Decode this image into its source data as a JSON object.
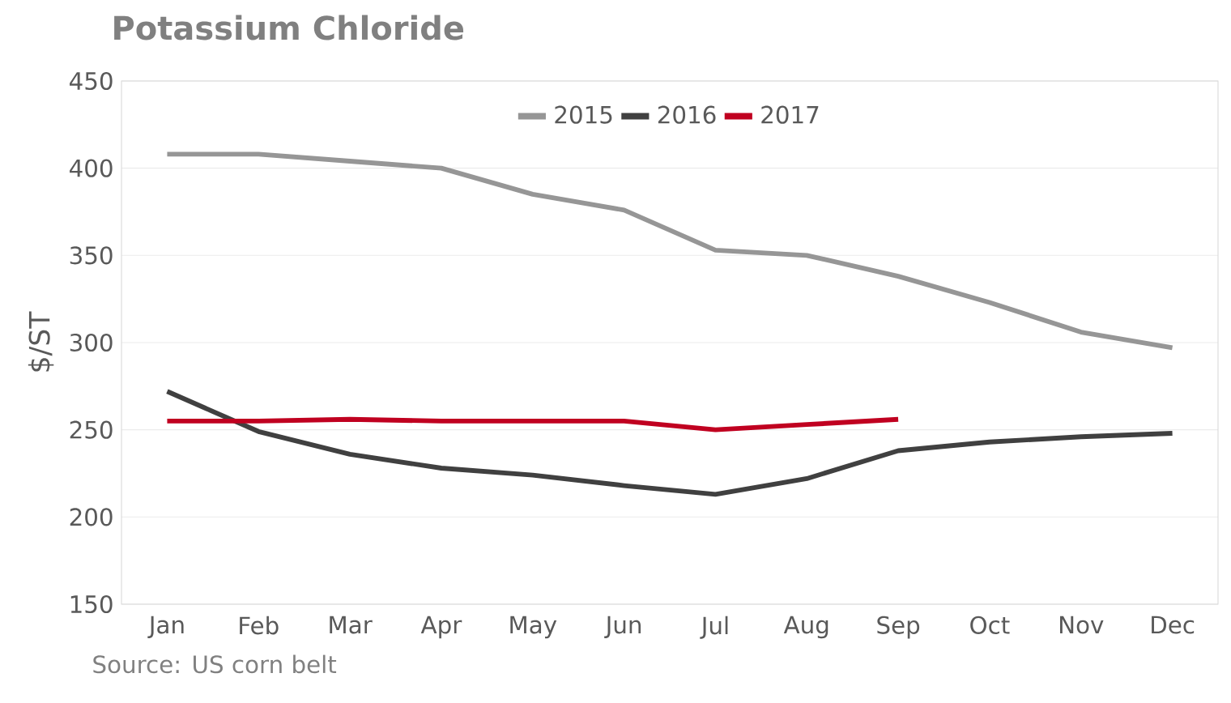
{
  "chart_data": {
    "type": "line",
    "title": "Potassium Chloride",
    "ylabel": "$/ST",
    "categories": [
      "Jan",
      "Feb",
      "Mar",
      "Apr",
      "May",
      "Jun",
      "Jul",
      "Aug",
      "Sep",
      "Oct",
      "Nov",
      "Dec"
    ],
    "series": [
      {
        "name": "2015",
        "color": "#969696",
        "values": [
          408,
          408,
          404,
          400,
          385,
          376,
          353,
          350,
          338,
          323,
          306,
          297
        ]
      },
      {
        "name": "2016",
        "color": "#404040",
        "values": [
          272,
          249,
          236,
          228,
          224,
          218,
          213,
          222,
          238,
          243,
          246,
          248
        ]
      },
      {
        "name": "2017",
        "color": "#c00020",
        "values": [
          255,
          255,
          256,
          255,
          255,
          255,
          250,
          253,
          256,
          null,
          null,
          null
        ]
      }
    ],
    "ylim": [
      150,
      450
    ],
    "yticks": [
      150,
      200,
      250,
      300,
      350,
      400,
      450
    ],
    "grid": "y",
    "legend": "top",
    "marker": "none",
    "line_style": "solid",
    "annotations": [
      "Source:  US corn belt"
    ]
  }
}
